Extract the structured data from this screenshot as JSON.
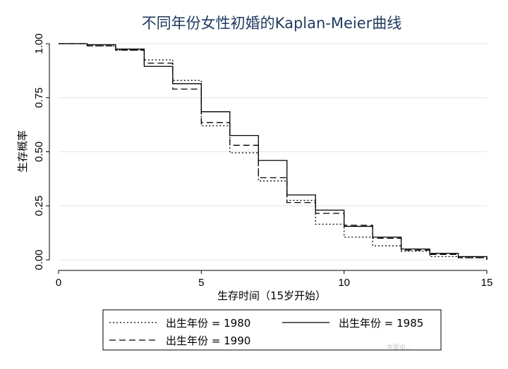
{
  "watermark": "本图由...",
  "chart_data": {
    "type": "line",
    "step": true,
    "title": "不同年份女性初婚的Kaplan-Meier曲线",
    "xlabel": "生存时间（15岁开始）",
    "ylabel": "生存概率",
    "xlim": [
      0,
      15
    ],
    "ylim": [
      0,
      1
    ],
    "x_ticks": [
      0,
      5,
      10,
      15
    ],
    "x_tick_labels": [
      "0",
      "5",
      "10",
      "15"
    ],
    "y_ticks": [
      0,
      0.25,
      0.5,
      0.75,
      1
    ],
    "y_tick_labels": [
      "0.00",
      "0.25",
      "0.50",
      "0.75",
      "1.00"
    ],
    "grid": "horizontal",
    "legend_position": "bottom",
    "x": [
      0,
      1,
      2,
      3,
      4,
      5,
      6,
      7,
      8,
      9,
      10,
      11,
      12,
      13,
      14,
      15
    ],
    "series": [
      {
        "name": "出生年份 = 1980",
        "style": "dotted",
        "values": [
          1.0,
          0.99,
          0.97,
          0.925,
          0.83,
          0.62,
          0.495,
          0.365,
          0.275,
          0.165,
          0.105,
          0.065,
          0.04,
          0.015,
          0.01,
          0.0
        ]
      },
      {
        "name": "出生年份 = 1985",
        "style": "solid",
        "values": [
          1.0,
          0.995,
          0.975,
          0.895,
          0.815,
          0.685,
          0.575,
          0.46,
          0.3,
          0.23,
          0.155,
          0.105,
          0.05,
          0.03,
          0.015,
          0.0
        ]
      },
      {
        "name": "出生年份 = 1990",
        "style": "dashed",
        "values": [
          1.0,
          0.99,
          0.97,
          0.91,
          0.79,
          0.635,
          0.53,
          0.38,
          0.265,
          0.215,
          0.16,
          0.1,
          0.045,
          0.025,
          0.01,
          0.0
        ]
      }
    ]
  }
}
